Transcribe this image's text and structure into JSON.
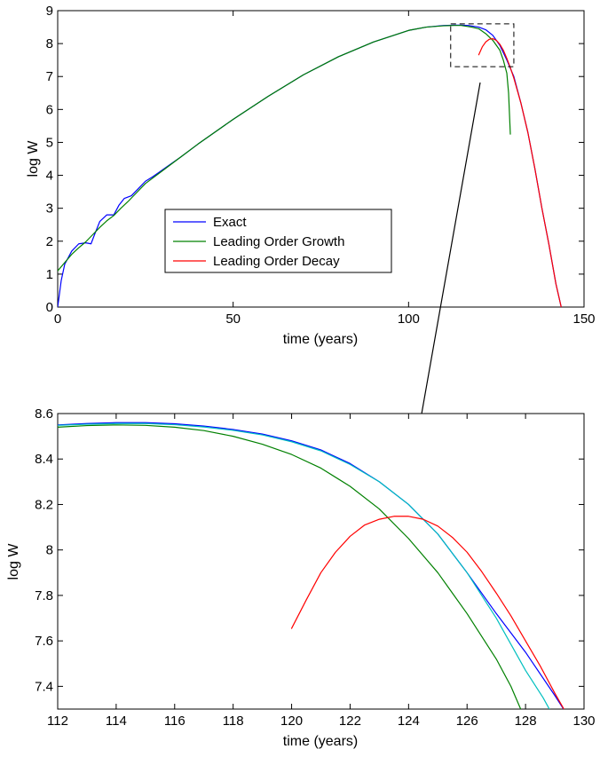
{
  "chart_data": [
    {
      "type": "line",
      "title": "",
      "xlabel": "time (years)",
      "ylabel": "log W",
      "xlim": [
        0,
        150
      ],
      "ylim": [
        0,
        9
      ],
      "xticks": [
        0,
        50,
        100,
        150
      ],
      "yticks": [
        0,
        1,
        2,
        3,
        4,
        5,
        6,
        7,
        8,
        9
      ],
      "grid": false,
      "legend_position": "center-left",
      "zoom_box": {
        "x": [
          112,
          130
        ],
        "y": [
          7.3,
          8.6
        ]
      },
      "series": [
        {
          "name": "Exact",
          "color": "#0000ff",
          "x": [
            0,
            1,
            2,
            4,
            6,
            8,
            9.5,
            10.5,
            12,
            14,
            16,
            17.5,
            19,
            21,
            23,
            25,
            27,
            29,
            31,
            35,
            40,
            50,
            60,
            70,
            80,
            90,
            100,
            105,
            110,
            113,
            115,
            117,
            120,
            122,
            124,
            126,
            128,
            130,
            132,
            134,
            136,
            138,
            140,
            142,
            143.5
          ],
          "y": [
            0,
            0.8,
            1.3,
            1.7,
            1.92,
            1.95,
            1.92,
            2.2,
            2.6,
            2.8,
            2.8,
            3.1,
            3.3,
            3.38,
            3.6,
            3.82,
            3.95,
            4.1,
            4.25,
            4.55,
            4.95,
            5.7,
            6.4,
            7.05,
            7.6,
            8.05,
            8.4,
            8.5,
            8.55,
            8.56,
            8.56,
            8.55,
            8.5,
            8.42,
            8.25,
            7.95,
            7.5,
            7.0,
            6.2,
            5.3,
            4.2,
            3.0,
            1.9,
            0.7,
            0
          ]
        },
        {
          "name": "Leading Order Growth",
          "color": "#008000",
          "x": [
            0,
            2,
            4,
            6,
            8,
            10,
            12,
            14,
            16,
            18,
            20,
            25,
            30,
            35,
            40,
            50,
            60,
            70,
            80,
            90,
            100,
            105,
            110,
            113,
            115,
            118,
            120,
            122,
            124,
            126,
            127,
            128,
            128.5,
            129
          ],
          "y": [
            1.1,
            1.35,
            1.6,
            1.8,
            1.98,
            2.2,
            2.42,
            2.62,
            2.78,
            3.0,
            3.2,
            3.75,
            4.15,
            4.55,
            4.95,
            5.7,
            6.4,
            7.05,
            7.6,
            8.05,
            8.4,
            8.5,
            8.54,
            8.55,
            8.55,
            8.5,
            8.45,
            8.3,
            8.1,
            7.8,
            7.5,
            7.1,
            6.5,
            5.25
          ]
        },
        {
          "name": "Leading Order Decay",
          "color": "#ff0000",
          "x": [
            120,
            121,
            122,
            123,
            124,
            125,
            126,
            127,
            128,
            129,
            130,
            132,
            134,
            136,
            138,
            140,
            142,
            143.5
          ],
          "y": [
            7.66,
            7.9,
            8.05,
            8.13,
            8.15,
            8.1,
            7.98,
            7.8,
            7.55,
            7.27,
            6.95,
            6.2,
            5.3,
            4.2,
            3.0,
            1.9,
            0.7,
            0
          ]
        }
      ],
      "legend": [
        "Exact",
        "Leading Order Growth",
        "Leading Order Decay"
      ]
    },
    {
      "type": "line",
      "title": "",
      "xlabel": "time (years)",
      "ylabel": "log W",
      "xlim": [
        112,
        130
      ],
      "ylim": [
        7.3,
        8.6
      ],
      "xticks": [
        112,
        114,
        116,
        118,
        120,
        122,
        124,
        126,
        128,
        130
      ],
      "yticks": [
        7.4,
        7.6,
        7.8,
        8,
        8.2,
        8.4,
        8.6
      ],
      "ytick_labels": [
        "7.4",
        "7.6",
        "7.8",
        "8",
        "8.2",
        "8.4",
        "8.6"
      ],
      "grid": false,
      "series": [
        {
          "color": "#0000ff",
          "x": [
            112,
            113,
            114,
            115,
            116,
            117,
            118,
            119,
            120,
            121,
            122,
            123,
            124,
            125,
            126,
            127,
            128,
            129,
            129.4
          ],
          "y": [
            8.55,
            8.556,
            8.56,
            8.56,
            8.555,
            8.545,
            8.53,
            8.51,
            8.48,
            8.44,
            8.38,
            8.3,
            8.2,
            8.07,
            7.9,
            7.72,
            7.55,
            7.36,
            7.28
          ]
        },
        {
          "color": "#00bfbf",
          "x": [
            112,
            113,
            114,
            115,
            116,
            117,
            118,
            119,
            120,
            121,
            122,
            123,
            124,
            125,
            126,
            127,
            128,
            128.6,
            128.9
          ],
          "y": [
            8.548,
            8.553,
            8.556,
            8.556,
            8.551,
            8.541,
            8.526,
            8.506,
            8.476,
            8.436,
            8.376,
            8.3,
            8.2,
            8.07,
            7.9,
            7.7,
            7.47,
            7.35,
            7.28
          ]
        },
        {
          "color": "#008000",
          "x": [
            112,
            113,
            114,
            115,
            116,
            117,
            118,
            119,
            120,
            121,
            122,
            123,
            124,
            125,
            126,
            126.5,
            127,
            127.5,
            127.9
          ],
          "y": [
            8.54,
            8.547,
            8.55,
            8.548,
            8.54,
            8.525,
            8.5,
            8.465,
            8.42,
            8.36,
            8.28,
            8.18,
            8.05,
            7.9,
            7.72,
            7.62,
            7.52,
            7.4,
            7.28
          ]
        },
        {
          "color": "#ff0000",
          "x": [
            120,
            120.5,
            121,
            121.5,
            122,
            122.5,
            123,
            123.5,
            124,
            124.5,
            125,
            125.5,
            126,
            126.5,
            127,
            127.5,
            128,
            128.5,
            129,
            129.4
          ],
          "y": [
            7.655,
            7.78,
            7.9,
            7.99,
            8.06,
            8.11,
            8.135,
            8.148,
            8.148,
            8.135,
            8.105,
            8.055,
            7.99,
            7.905,
            7.81,
            7.71,
            7.6,
            7.49,
            7.37,
            7.28
          ]
        }
      ]
    }
  ]
}
